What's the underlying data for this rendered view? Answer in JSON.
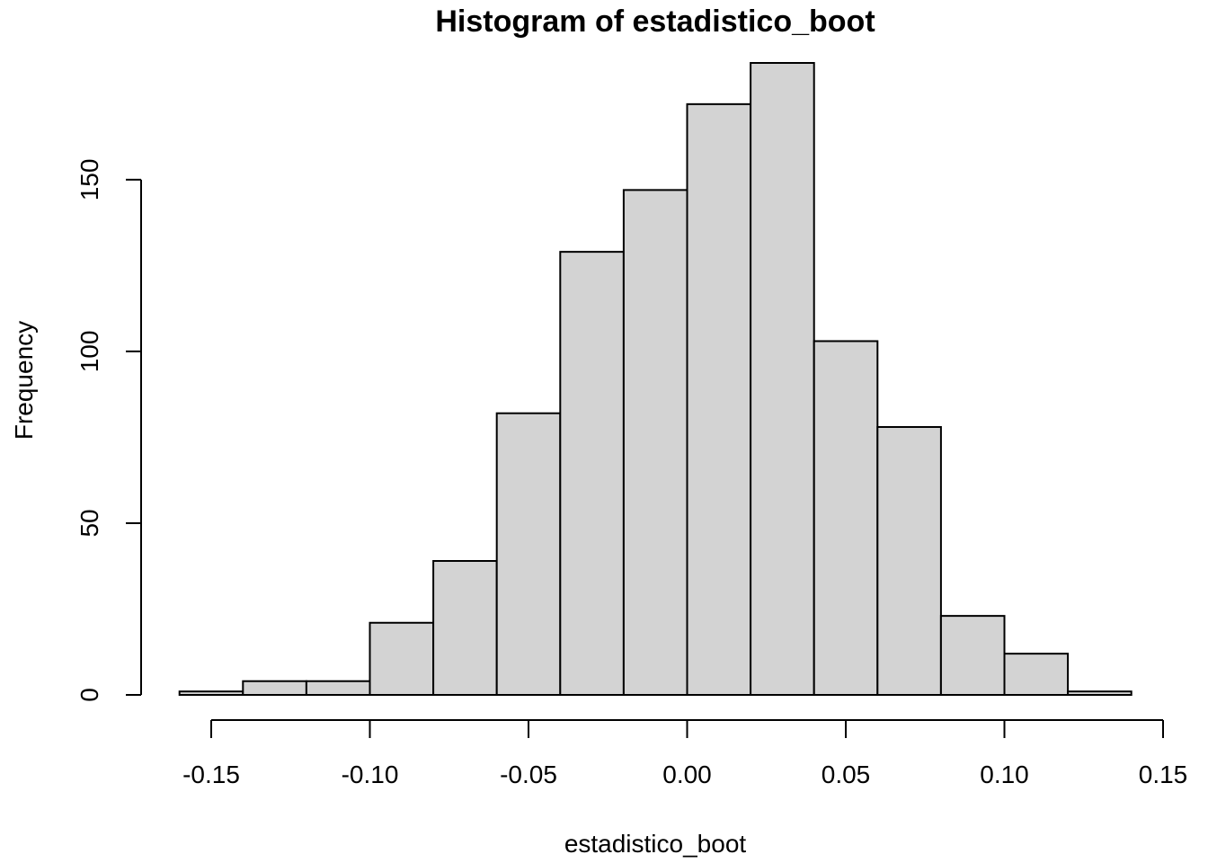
{
  "chart_data": {
    "type": "bar",
    "title": "Histogram of estadistico_boot",
    "xlabel": "estadistico_boot",
    "ylabel": "Frequency",
    "bins": [
      {
        "x0": -0.16,
        "x1": -0.14,
        "count": 1
      },
      {
        "x0": -0.14,
        "x1": -0.12,
        "count": 4
      },
      {
        "x0": -0.12,
        "x1": -0.1,
        "count": 4
      },
      {
        "x0": -0.1,
        "x1": -0.08,
        "count": 21
      },
      {
        "x0": -0.08,
        "x1": -0.06,
        "count": 39
      },
      {
        "x0": -0.06,
        "x1": -0.04,
        "count": 82
      },
      {
        "x0": -0.04,
        "x1": -0.02,
        "count": 129
      },
      {
        "x0": -0.02,
        "x1": 0.0,
        "count": 147
      },
      {
        "x0": 0.0,
        "x1": 0.02,
        "count": 172
      },
      {
        "x0": 0.02,
        "x1": 0.04,
        "count": 184
      },
      {
        "x0": 0.04,
        "x1": 0.06,
        "count": 103
      },
      {
        "x0": 0.06,
        "x1": 0.08,
        "count": 78
      },
      {
        "x0": 0.08,
        "x1": 0.1,
        "count": 23
      },
      {
        "x0": 0.1,
        "x1": 0.12,
        "count": 12
      },
      {
        "x0": 0.12,
        "x1": 0.14,
        "count": 1
      }
    ],
    "xticks": [
      -0.15,
      -0.1,
      -0.05,
      0.0,
      0.05,
      0.1,
      0.15
    ],
    "xtick_labels": [
      "-0.15",
      "-0.10",
      "-0.05",
      "0.00",
      "0.05",
      "0.10",
      "0.15"
    ],
    "yticks": [
      0,
      50,
      100,
      150
    ],
    "ytick_labels": [
      "0",
      "50",
      "100",
      "150"
    ],
    "xlim": [
      -0.15,
      0.15
    ],
    "ylim": [
      0,
      184
    ],
    "grid": false,
    "bar_fill": "#d3d3d3",
    "bar_stroke": "#000000"
  }
}
